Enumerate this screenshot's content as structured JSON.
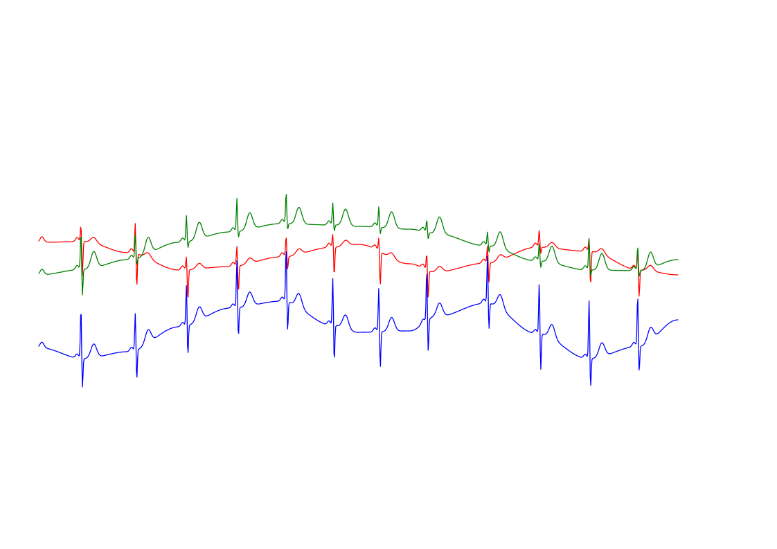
{
  "chart_data": {
    "type": "line",
    "grid": false,
    "axes_visible": false,
    "series": [
      {
        "color": "#ff0000",
        "baseline": [
          [
            0,
            -15
          ],
          [
            0.07,
            -14
          ],
          [
            0.14,
            -30
          ],
          [
            0.22,
            -55
          ],
          [
            0.3,
            -50
          ],
          [
            0.38,
            -36
          ],
          [
            0.46,
            -22
          ],
          [
            0.5,
            -18
          ],
          [
            0.58,
            -46
          ],
          [
            0.62,
            -58
          ],
          [
            0.7,
            -45
          ],
          [
            0.78,
            -22
          ],
          [
            0.86,
            -28
          ],
          [
            0.94,
            -55
          ],
          [
            1,
            -62
          ]
        ],
        "beats": [
          {
            "t": 0.066,
            "r": 25,
            "s": 50,
            "tw": 8
          },
          {
            "t": 0.151,
            "r": 45,
            "s": 50,
            "tw": 8
          },
          {
            "t": 0.231,
            "r": 20,
            "s": 45,
            "tw": 8
          },
          {
            "t": 0.31,
            "r": 30,
            "s": 40,
            "tw": 8
          },
          {
            "t": 0.387,
            "r": 30,
            "s": 20,
            "tw": 8
          },
          {
            "t": 0.46,
            "r": 20,
            "s": 42,
            "tw": 8
          },
          {
            "t": 0.532,
            "r": 20,
            "s": 50,
            "tw": 8
          },
          {
            "t": 0.607,
            "r": 25,
            "s": 40,
            "tw": 8
          },
          {
            "t": 0.702,
            "r": 25,
            "s": 30,
            "tw": 8
          },
          {
            "t": 0.783,
            "r": 25,
            "s": 10,
            "tw": 8
          },
          {
            "t": 0.861,
            "r": 20,
            "s": 50,
            "tw": 8
          },
          {
            "t": 0.937,
            "r": 28,
            "s": 40,
            "tw": 8
          }
        ]
      },
      {
        "color": "#008000",
        "baseline": [
          [
            0,
            -2
          ],
          [
            0.07,
            6
          ],
          [
            0.14,
            20
          ],
          [
            0.22,
            45
          ],
          [
            0.3,
            60
          ],
          [
            0.38,
            72
          ],
          [
            0.46,
            70
          ],
          [
            0.5,
            68
          ],
          [
            0.58,
            64
          ],
          [
            0.62,
            58
          ],
          [
            0.7,
            40
          ],
          [
            0.78,
            18
          ],
          [
            0.86,
            5
          ],
          [
            0.94,
            4
          ],
          [
            1,
            20
          ]
        ],
        "beats": [
          {
            "t": 0.066,
            "r": 55,
            "s": 40,
            "tw": 24
          },
          {
            "t": 0.151,
            "r": 35,
            "s": 10,
            "tw": 24
          },
          {
            "t": 0.231,
            "r": 38,
            "s": 10,
            "tw": 24
          },
          {
            "t": 0.31,
            "r": 48,
            "s": 10,
            "tw": 24
          },
          {
            "t": 0.387,
            "r": 45,
            "s": 10,
            "tw": 24
          },
          {
            "t": 0.46,
            "r": 32,
            "s": 10,
            "tw": 24
          },
          {
            "t": 0.532,
            "r": 30,
            "s": 10,
            "tw": 24
          },
          {
            "t": 0.607,
            "r": 18,
            "s": 10,
            "tw": 24
          },
          {
            "t": 0.702,
            "r": 20,
            "s": 10,
            "tw": 24
          },
          {
            "t": 0.783,
            "r": 25,
            "s": 10,
            "tw": 24
          },
          {
            "t": 0.861,
            "r": 45,
            "s": 10,
            "tw": 24
          },
          {
            "t": 0.937,
            "r": 35,
            "s": 10,
            "tw": 24
          }
        ]
      },
      {
        "color": "#0000ff",
        "baseline": [
          [
            0,
            -2
          ],
          [
            0.07,
            -18
          ],
          [
            0.14,
            -8
          ],
          [
            0.22,
            28
          ],
          [
            0.3,
            55
          ],
          [
            0.38,
            65
          ],
          [
            0.46,
            30
          ],
          [
            0.5,
            20
          ],
          [
            0.58,
            22
          ],
          [
            0.62,
            42
          ],
          [
            0.7,
            62
          ],
          [
            0.78,
            18
          ],
          [
            0.86,
            -18
          ],
          [
            0.94,
            0
          ],
          [
            1,
            38
          ]
        ],
        "beats": [
          {
            "t": 0.066,
            "r": 75,
            "s": 45,
            "tw": 20
          },
          {
            "t": 0.151,
            "r": 55,
            "s": 45,
            "tw": 20
          },
          {
            "t": 0.231,
            "r": 60,
            "s": 45,
            "tw": 20
          },
          {
            "t": 0.31,
            "r": 70,
            "s": 45,
            "tw": 20
          },
          {
            "t": 0.387,
            "r": 80,
            "s": 45,
            "tw": 20
          },
          {
            "t": 0.46,
            "r": 70,
            "s": 55,
            "tw": 20
          },
          {
            "t": 0.532,
            "r": 65,
            "s": 55,
            "tw": 20
          },
          {
            "t": 0.607,
            "r": 75,
            "s": 50,
            "tw": 20
          },
          {
            "t": 0.702,
            "r": 70,
            "s": 40,
            "tw": 20
          },
          {
            "t": 0.783,
            "r": 75,
            "s": 55,
            "tw": 20
          },
          {
            "t": 0.861,
            "r": 85,
            "s": 45,
            "tw": 20
          },
          {
            "t": 0.937,
            "r": 75,
            "s": 40,
            "tw": 20
          }
        ]
      }
    ]
  }
}
